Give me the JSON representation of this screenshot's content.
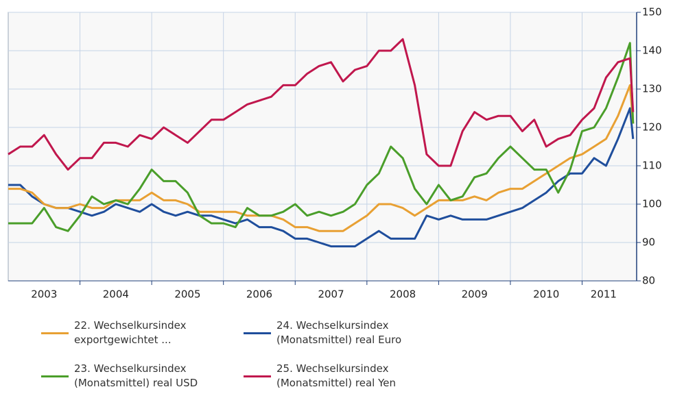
{
  "chart_data": {
    "type": "line",
    "x": [
      2003,
      2003.167,
      2003.333,
      2003.5,
      2003.667,
      2003.833,
      2004,
      2004.167,
      2004.333,
      2004.5,
      2004.667,
      2004.833,
      2005,
      2005.167,
      2005.333,
      2005.5,
      2005.667,
      2005.833,
      2006,
      2006.167,
      2006.333,
      2006.5,
      2006.667,
      2006.833,
      2007,
      2007.167,
      2007.333,
      2007.5,
      2007.667,
      2007.833,
      2008,
      2008.167,
      2008.333,
      2008.5,
      2008.667,
      2008.833,
      2009,
      2009.167,
      2009.333,
      2009.5,
      2009.667,
      2009.833,
      2010,
      2010.167,
      2010.333,
      2010.5,
      2010.667,
      2010.833,
      2011,
      2011.167,
      2011.333,
      2011.5,
      2011.667,
      2011.71
    ],
    "series": [
      {
        "name": "22. Wechselkursindex\nexportgewichtet ...",
        "color": "#e8a033",
        "values": [
          104,
          104,
          103,
          100,
          99,
          99,
          100,
          99,
          99,
          101,
          101,
          101,
          103,
          101,
          101,
          100,
          98,
          98,
          98,
          98,
          97,
          97,
          97,
          96,
          94,
          94,
          93,
          93,
          93,
          95,
          97,
          100,
          100,
          99,
          97,
          99,
          101,
          101,
          101,
          102,
          101,
          103,
          104,
          104,
          106,
          108,
          110,
          112,
          113,
          115,
          117,
          123,
          131,
          121
        ]
      },
      {
        "name": "24. Wechselkursindex\n(Monatsmittel) real Euro",
        "color": "#1f4e9c",
        "values": [
          105,
          105,
          102,
          100,
          99,
          99,
          98,
          97,
          98,
          100,
          99,
          98,
          100,
          98,
          97,
          98,
          97,
          97,
          96,
          95,
          96,
          94,
          94,
          93,
          91,
          91,
          90,
          89,
          89,
          89,
          91,
          93,
          91,
          91,
          91,
          97,
          96,
          97,
          96,
          96,
          96,
          97,
          98,
          99,
          101,
          103,
          106,
          108,
          108,
          112,
          110,
          117,
          125,
          117
        ]
      },
      {
        "name": "23. Wechselkursindex\n(Monatsmittel) real USD",
        "color": "#4a9e2a",
        "values": [
          95,
          95,
          95,
          99,
          94,
          93,
          97,
          102,
          100,
          101,
          100,
          104,
          109,
          106,
          106,
          103,
          97,
          95,
          95,
          94,
          99,
          97,
          97,
          98,
          100,
          97,
          98,
          97,
          98,
          100,
          105,
          108,
          115,
          112,
          104,
          100,
          105,
          101,
          102,
          107,
          108,
          112,
          115,
          112,
          109,
          109,
          103,
          109,
          119,
          120,
          125,
          133,
          142,
          121
        ]
      },
      {
        "name": "25. Wechselkursindex\n(Monatsmittel) real Yen",
        "color": "#c0174d",
        "values": [
          113,
          115,
          115,
          118,
          113,
          109,
          112,
          112,
          116,
          116,
          115,
          118,
          117,
          120,
          118,
          116,
          119,
          122,
          122,
          124,
          126,
          127,
          128,
          131,
          131,
          134,
          136,
          137,
          132,
          135,
          136,
          140,
          140,
          143,
          131,
          113,
          110,
          110,
          119,
          124,
          122,
          123,
          123,
          119,
          122,
          115,
          117,
          118,
          122,
          125,
          133,
          137,
          138,
          124
        ]
      }
    ],
    "xlim": [
      2003,
      2011.76
    ],
    "xticks": [
      {
        "value": 2003.5,
        "label": "2003"
      },
      {
        "value": 2004.5,
        "label": "2004"
      },
      {
        "value": 2005.5,
        "label": "2005"
      },
      {
        "value": 2006.5,
        "label": "2006"
      },
      {
        "value": 2007.5,
        "label": "2007"
      },
      {
        "value": 2008.5,
        "label": "2008"
      },
      {
        "value": 2009.5,
        "label": "2009"
      },
      {
        "value": 2010.5,
        "label": "2010"
      },
      {
        "value": 2011.3,
        "label": "2011"
      }
    ],
    "ylim": [
      80,
      150
    ],
    "yticks": [
      80,
      90,
      100,
      110,
      120,
      130,
      140,
      150
    ],
    "grid": true
  }
}
